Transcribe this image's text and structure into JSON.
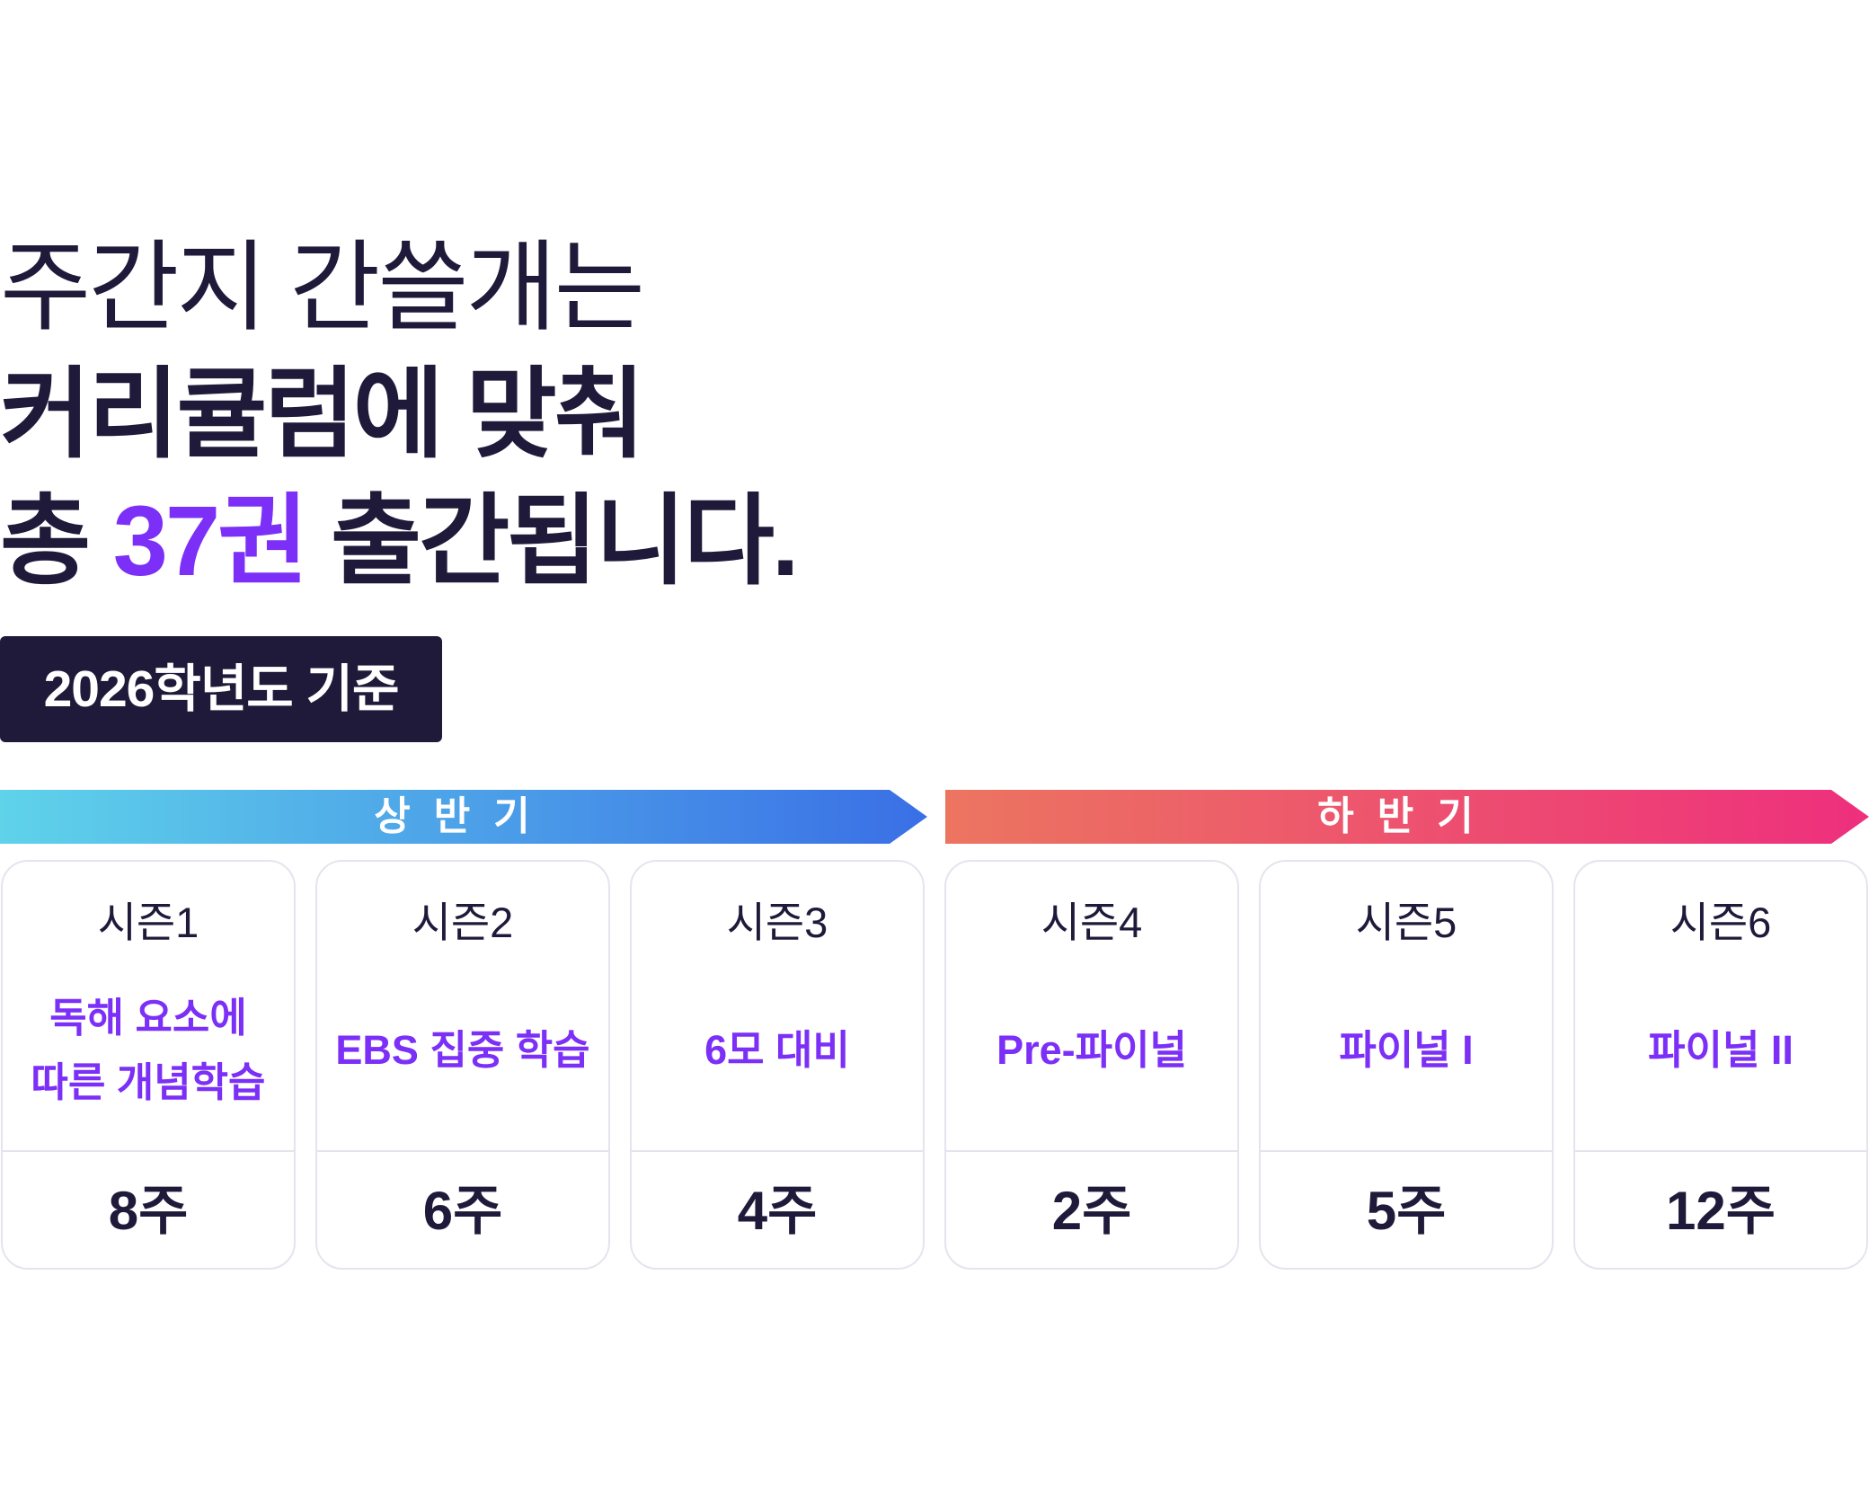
{
  "headline": {
    "line1": "주간지 간쓸개는",
    "line2": "커리큘럼에 맞춰",
    "line3_prefix": "총 ",
    "line3_accent": "37권",
    "line3_suffix": " 출간됩니다."
  },
  "badge": "2026학년도 기준",
  "half_labels": {
    "first": "상반기",
    "second": "하반기"
  },
  "colors": {
    "text_dark": "#1f1a3a",
    "accent_purple": "#7b2ff7",
    "first_half_gradient": [
      "#5fd3ea",
      "#3a6fe6"
    ],
    "second_half_gradient": [
      "#ec7560",
      "#ee2f7d"
    ],
    "card_border": "#e4e4ee"
  },
  "seasons": [
    {
      "season": "시즌1",
      "topic": "독해 요소에\n따른 개념학습",
      "weeks": "8주"
    },
    {
      "season": "시즌2",
      "topic": "EBS 집중 학습",
      "weeks": "6주"
    },
    {
      "season": "시즌3",
      "topic": "6모 대비",
      "weeks": "4주"
    },
    {
      "season": "시즌4",
      "topic": "Pre-파이널",
      "weeks": "2주"
    },
    {
      "season": "시즌5",
      "topic": "파이널 I",
      "weeks": "5주"
    },
    {
      "season": "시즌6",
      "topic": "파이널 II",
      "weeks": "12주"
    }
  ]
}
